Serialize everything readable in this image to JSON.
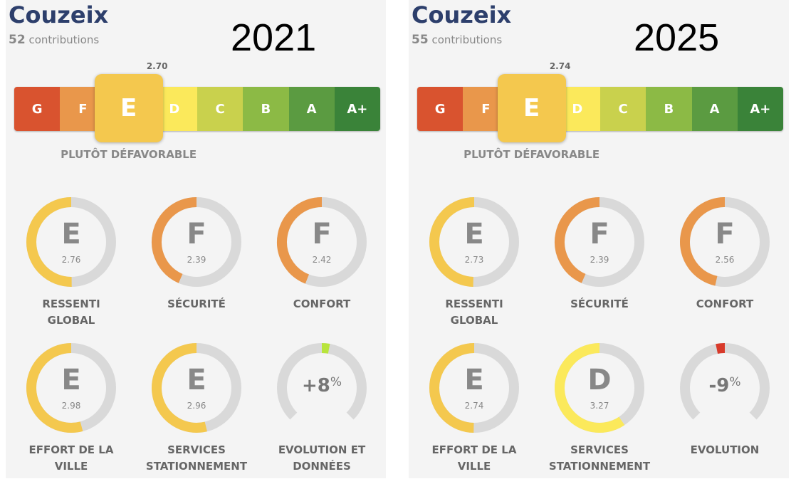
{
  "grade_scale": [
    {
      "label": "G",
      "color": "#d9532f"
    },
    {
      "label": "F",
      "color": "#e9974b"
    },
    {
      "label": "E",
      "color": "#f4c84e"
    },
    {
      "label": "D",
      "color": "#fbe95b"
    },
    {
      "label": "C",
      "color": "#c9d14d"
    },
    {
      "label": "B",
      "color": "#8cba45"
    },
    {
      "label": "A",
      "color": "#5b9b41"
    },
    {
      "label": "A+",
      "color": "#3a8339"
    }
  ],
  "panels": [
    {
      "year": "2021",
      "city": "Couzeix",
      "contributions_count": "52",
      "contributions_text": "contributions",
      "score": "2.70",
      "rating": "E",
      "verdict": "PLUTÔT DÉFAVORABLE",
      "gauges": [
        {
          "grade": "E",
          "score": "2.76",
          "label": "RESSENTI GLOBAL"
        },
        {
          "grade": "F",
          "score": "2.39",
          "label": "SÉCURITÉ"
        },
        {
          "grade": "F",
          "score": "2.42",
          "label": "CONFORT"
        },
        {
          "grade": "E",
          "score": "2.98",
          "label": "EFFORT DE LA VILLE"
        },
        {
          "grade": "E",
          "score": "2.96",
          "label": "SERVICES STATIONNEMENT"
        }
      ],
      "evolution": {
        "value": "+8",
        "unit": "%",
        "label": "EVOLUTION ET DONNÉES",
        "color": "#b8e43c"
      }
    },
    {
      "year": "2025",
      "city": "Couzeix",
      "contributions_count": "55",
      "contributions_text": "contributions",
      "score": "2.74",
      "rating": "E",
      "verdict": "PLUTÔT DÉFAVORABLE",
      "gauges": [
        {
          "grade": "E",
          "score": "2.73",
          "label": "RESSENTI GLOBAL"
        },
        {
          "grade": "F",
          "score": "2.39",
          "label": "SÉCURITÉ"
        },
        {
          "grade": "F",
          "score": "2.56",
          "label": "CONFORT"
        },
        {
          "grade": "E",
          "score": "2.74",
          "label": "EFFORT DE LA VILLE"
        },
        {
          "grade": "D",
          "score": "3.27",
          "label": "SERVICES STATIONNEMENT"
        }
      ],
      "evolution": {
        "value": "-9",
        "unit": "%",
        "label": "EVOLUTION",
        "color": "#d83a2a"
      }
    }
  ]
}
